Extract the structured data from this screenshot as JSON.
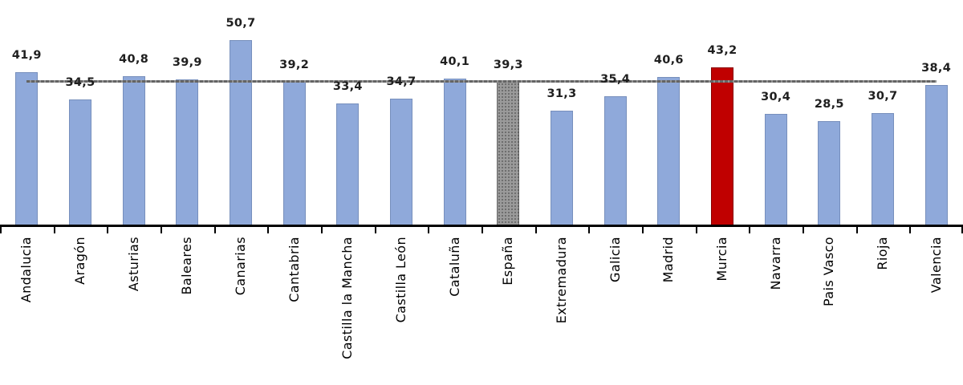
{
  "chart_data": {
    "type": "bar",
    "title": "",
    "xlabel": "",
    "ylabel": "",
    "categories": [
      "Andalucia",
      "Aragón",
      "Asturias",
      "Baleares",
      "Canarias",
      "Cantabria",
      "Castilla la Mancha",
      "Castilla León",
      "Cataluña",
      "España",
      "Extremadura",
      "Galicia",
      "Madrid",
      "Murcia",
      "Navarra",
      "Pais Vasco",
      "Rioja",
      "Valencia"
    ],
    "values": [
      41.9,
      34.5,
      40.8,
      39.9,
      50.7,
      39.2,
      33.4,
      34.7,
      40.1,
      39.3,
      31.3,
      35.4,
      40.6,
      43.2,
      30.4,
      28.5,
      30.7,
      38.4
    ],
    "value_labels": [
      "41,9",
      "34,5",
      "40,8",
      "39,9",
      "50,7",
      "39,2",
      "33,4",
      "34,7",
      "40,1",
      "39,3",
      "31,3",
      "35,4",
      "40,6",
      "43,2",
      "30,4",
      "28,5",
      "30,7",
      "38,4"
    ],
    "highlight_category": "Murcia",
    "reference_category": "España",
    "reference_line": {
      "value": 39.3,
      "span": "first-to-last-category-center",
      "style": "dotted"
    },
    "ylim": [
      0,
      61.5
    ],
    "grid": false,
    "legend": false,
    "y_axis_visible": false,
    "colors": {
      "bar": "#8FA9DA",
      "highlight": "#C00000",
      "reference_base": "#9A9A9A",
      "reference_dot": "#5F5F5F",
      "line": "#7F7F7F",
      "axis": "#000000",
      "value_label": "#1F1F1F",
      "category_label": "#000000"
    }
  }
}
